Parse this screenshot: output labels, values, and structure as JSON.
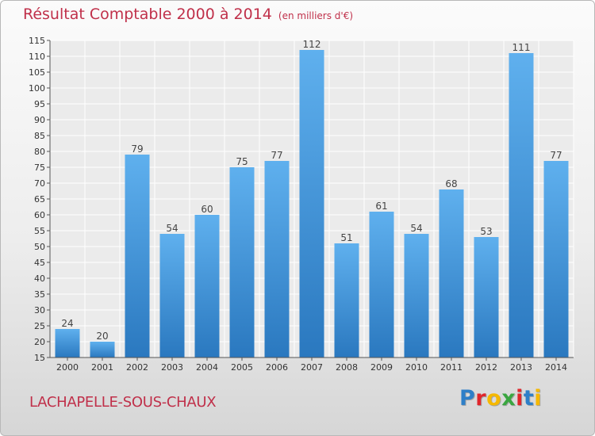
{
  "chart_data": {
    "type": "bar",
    "title": "Résultat Comptable 2000 à 2014",
    "subtitle": "(en milliers d'€)",
    "xlabel": "",
    "ylabel": "",
    "categories": [
      "2000",
      "2001",
      "2002",
      "2003",
      "2004",
      "2005",
      "2006",
      "2007",
      "2008",
      "2009",
      "2010",
      "2011",
      "2012",
      "2013",
      "2014"
    ],
    "values": [
      24,
      20,
      79,
      54,
      60,
      75,
      77,
      112,
      51,
      61,
      54,
      68,
      53,
      111,
      77
    ],
    "ylim": [
      15,
      115
    ],
    "yticks": [
      15,
      20,
      25,
      30,
      35,
      40,
      45,
      50,
      55,
      60,
      65,
      70,
      75,
      80,
      85,
      90,
      95,
      100,
      105,
      110,
      115
    ],
    "grid": true,
    "bar_color": "#4a9fe0"
  },
  "footer": {
    "place": "LACHAPELLE-SOUS-CHAUX",
    "logo_letters": [
      "P",
      "r",
      "o",
      "x",
      "i",
      "t",
      "i"
    ],
    "logo_colors": [
      "#2e7fc8",
      "#e0262c",
      "#f5b800",
      "#3aa640",
      "#e0262c",
      "#2e7fc8",
      "#f5b800"
    ]
  }
}
